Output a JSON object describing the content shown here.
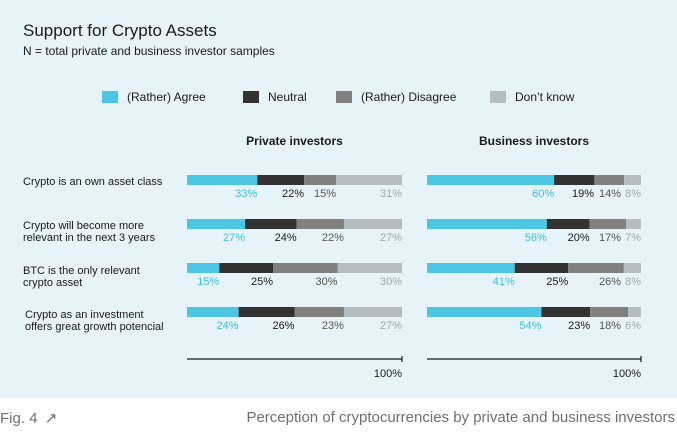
{
  "title": "Support for Crypto Assets",
  "subtitle": "N = total private and business investor samples",
  "caption": {
    "fig": "Fig. 4",
    "fig_icon": "arrow-up-right-icon",
    "text": "Perception of cryptocurrencies by private and business investors"
  },
  "chart_data": {
    "type": "bar",
    "stacked": true,
    "orientation": "horizontal",
    "title": "Support for Crypto Assets",
    "subtitle": "N = total private and business investor samples",
    "legend_position": "top",
    "categories": [
      "Crypto is an own asset class",
      "Crypto will become more relevant in the next 3 years",
      "BTC is the only relevant crypto asset",
      "Crypto as an investment offers great growth potencial"
    ],
    "category_lines": [
      [
        "Crypto is an own asset class"
      ],
      [
        "Crypto will become more",
        "relevant in the next 3 years"
      ],
      [
        "BTC is the only relevant",
        "crypto asset"
      ],
      [
        "Crypto as an investment",
        "offers great growth potencial"
      ]
    ],
    "segment_names": [
      "(Rather) Agree",
      "Neutral",
      "(Rather) Disagree",
      "Don’t know"
    ],
    "segment_colors": [
      "#4dc5e4",
      "#333333",
      "#808080",
      "#b4bec3"
    ],
    "label_colors": [
      "#3fbde0",
      "#1b1b1b",
      "#555555",
      "#9fa9ae"
    ],
    "axis_end_label": "100%",
    "panels": [
      {
        "name": "Private investors",
        "values": [
          [
            33,
            22,
            15,
            31
          ],
          [
            27,
            24,
            22,
            27
          ],
          [
            15,
            25,
            30,
            30
          ],
          [
            24,
            26,
            23,
            27
          ]
        ]
      },
      {
        "name": "Business investors",
        "values": [
          [
            60,
            19,
            14,
            8
          ],
          [
            56,
            20,
            17,
            7
          ],
          [
            41,
            25,
            26,
            8
          ],
          [
            54,
            23,
            18,
            6
          ]
        ]
      }
    ]
  }
}
